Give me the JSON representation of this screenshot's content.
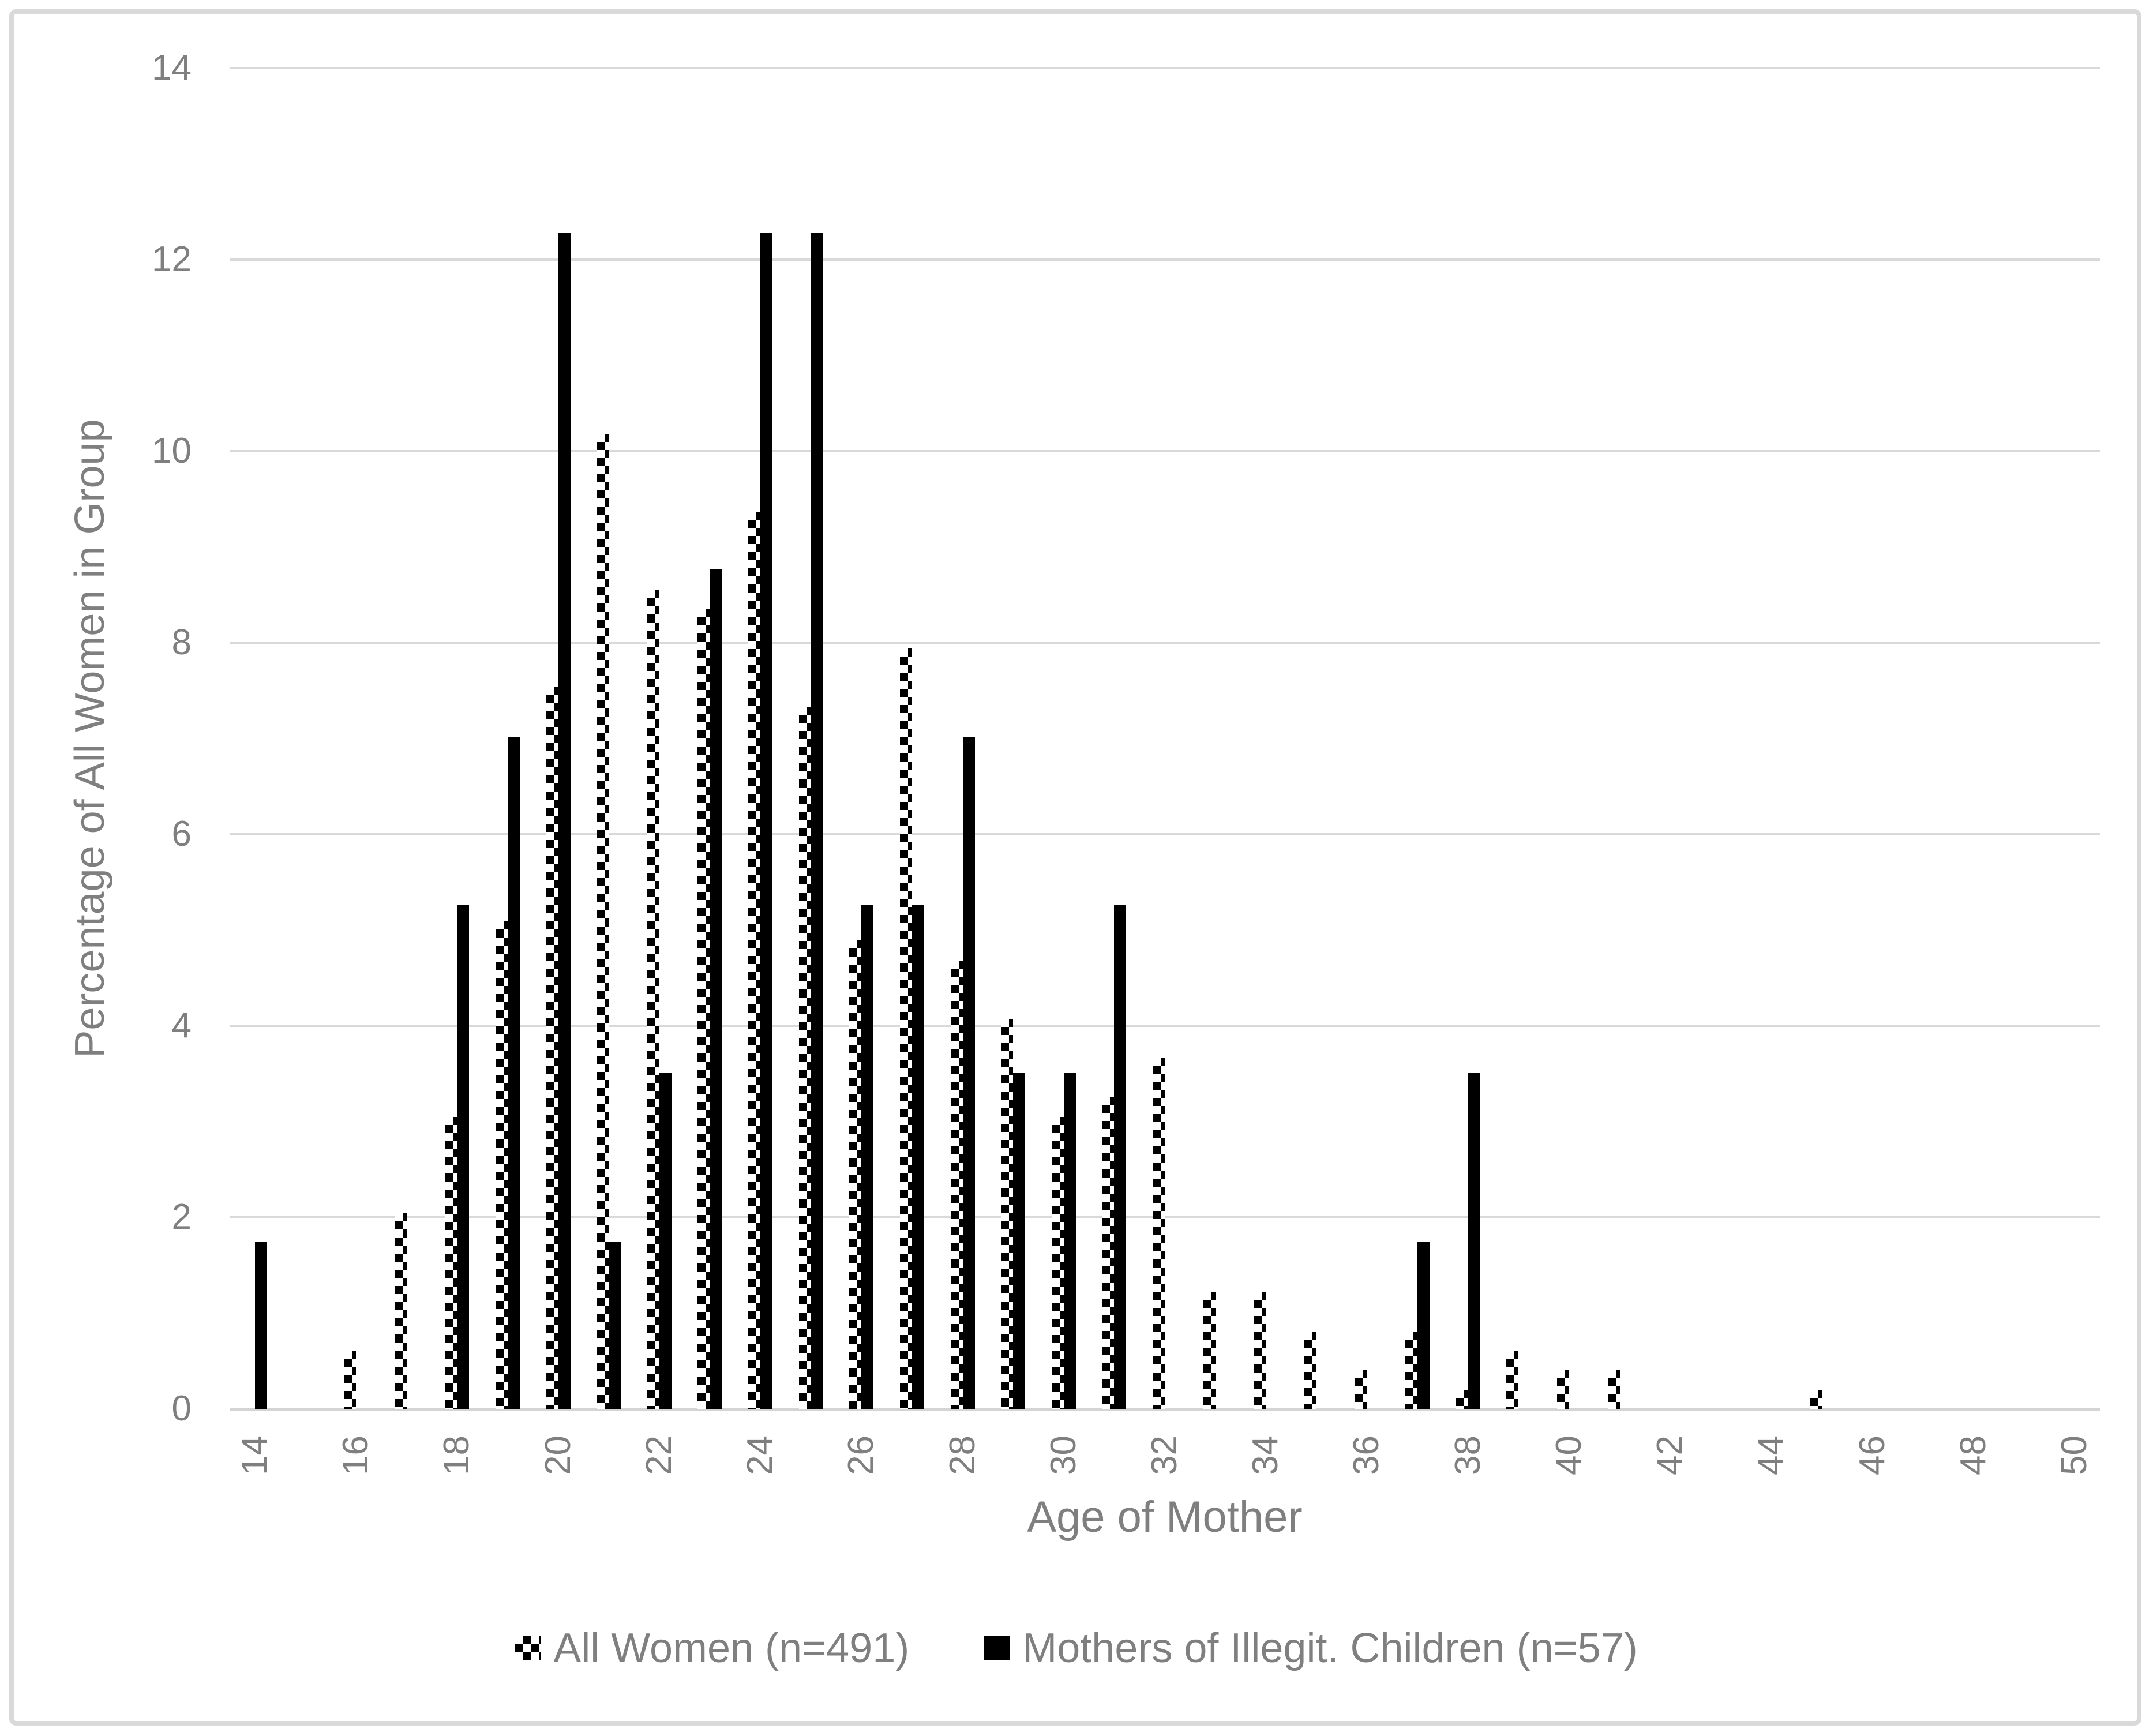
{
  "figure": {
    "background": "#ffffff",
    "border_color": "#d9d9d9",
    "text_color": "#7f7f7f",
    "gridline_color": "#d9d9d9"
  },
  "chart_data": {
    "type": "bar",
    "title": "",
    "xlabel": "Age of Mother",
    "ylabel": "Percentage of All Women in Group",
    "categories": [
      14,
      15,
      16,
      17,
      18,
      19,
      20,
      21,
      22,
      23,
      24,
      25,
      26,
      27,
      28,
      29,
      30,
      31,
      32,
      33,
      34,
      35,
      36,
      37,
      38,
      39,
      40,
      41,
      42,
      43,
      44,
      45,
      46,
      47,
      48,
      49,
      50
    ],
    "x_labeled_ticks": [
      14,
      16,
      18,
      20,
      22,
      24,
      26,
      28,
      30,
      32,
      34,
      36,
      38,
      40,
      42,
      44,
      46,
      48,
      50
    ],
    "y_ticks": [
      0,
      2,
      4,
      6,
      8,
      10,
      12,
      14
    ],
    "ylim": [
      0,
      14
    ],
    "grid": "horizontal",
    "legend_position": "bottom",
    "series": [
      {
        "name": "All Women (n=491)",
        "style": "checker-hatch",
        "color": "#000000",
        "values": [
          0,
          0,
          0.61,
          2.04,
          3.05,
          5.09,
          7.54,
          10.18,
          8.55,
          8.35,
          9.37,
          7.33,
          4.89,
          7.94,
          4.68,
          4.07,
          3.05,
          3.26,
          3.67,
          1.22,
          1.22,
          0.81,
          0.41,
          0.81,
          0.2,
          0.61,
          0.41,
          0.41,
          0,
          0,
          0,
          0.2,
          0,
          0,
          0,
          0,
          0
        ]
      },
      {
        "name": "Mothers of Illegit. Children (n=57)",
        "style": "solid",
        "color": "#000000",
        "values": [
          1.75,
          0,
          0,
          0,
          5.26,
          7.02,
          12.28,
          1.75,
          3.51,
          8.77,
          12.28,
          12.28,
          5.26,
          5.26,
          7.02,
          3.51,
          3.51,
          5.26,
          0,
          0,
          0,
          0,
          0,
          1.75,
          3.51,
          0,
          0,
          0,
          0,
          0,
          0,
          0,
          0,
          0,
          0,
          0,
          0
        ]
      }
    ]
  }
}
